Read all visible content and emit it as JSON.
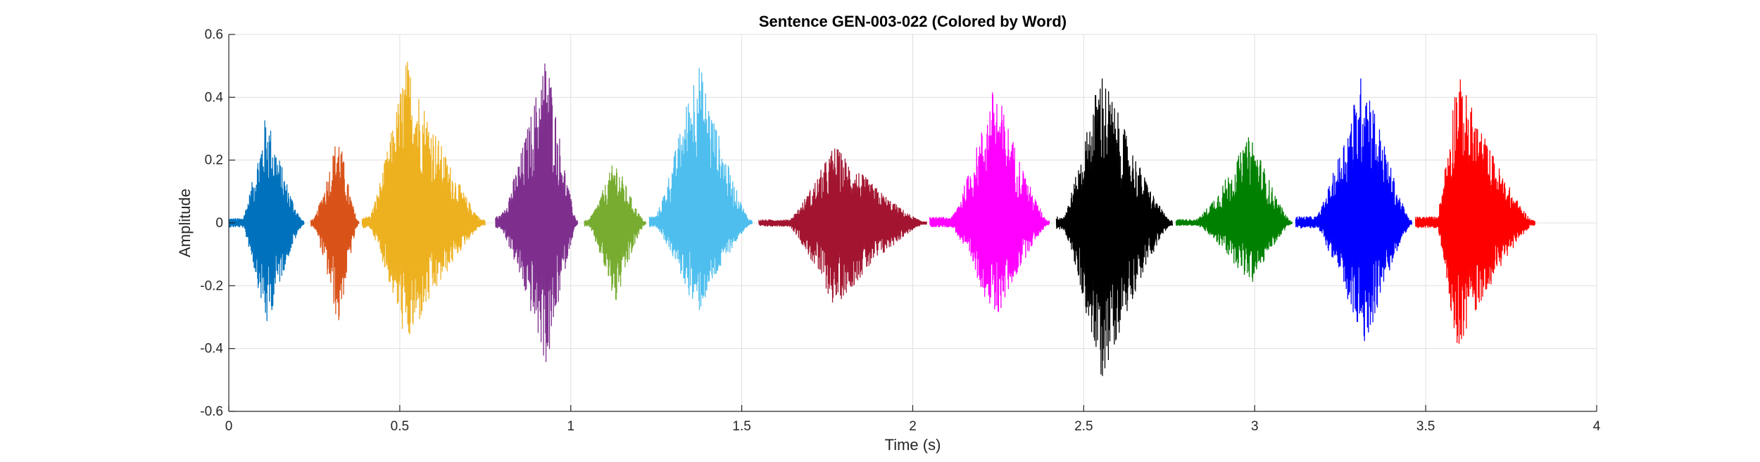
{
  "chart_data": {
    "type": "line",
    "title": "Sentence GEN-003-022 (Colored by Word)",
    "xlabel": "Time (s)",
    "ylabel": "Amplitude",
    "xlim": [
      0,
      4
    ],
    "ylim": [
      -0.6,
      0.6
    ],
    "x_ticks": [
      0,
      0.5,
      1,
      1.5,
      2,
      2.5,
      3,
      3.5,
      4
    ],
    "x_tick_labels": [
      "0",
      "0.5",
      "1",
      "1.5",
      "2",
      "2.5",
      "3",
      "3.5",
      "4"
    ],
    "y_ticks": [
      -0.6,
      -0.4,
      -0.2,
      0,
      0.2,
      0.4,
      0.6
    ],
    "y_tick_labels": [
      "-0.6",
      "-0.4",
      "-0.2",
      "0",
      "0.2",
      "0.4",
      "0.6"
    ],
    "grid": true,
    "legend": "none",
    "series": [
      {
        "color": "#0072BD",
        "x_start": 0.0,
        "x_end": 0.22,
        "pos_peak": 0.36,
        "neg_peak": -0.34,
        "peak_time": 0.11
      },
      {
        "color": "#D95319",
        "x_start": 0.24,
        "x_end": 0.38,
        "pos_peak": 0.3,
        "neg_peak": -0.34,
        "peak_time": 0.32
      },
      {
        "color": "#EDB120",
        "x_start": 0.39,
        "x_end": 0.75,
        "pos_peak": 0.53,
        "neg_peak": -0.4,
        "peak_time": 0.52
      },
      {
        "color": "#7E2F8E",
        "x_start": 0.78,
        "x_end": 1.02,
        "pos_peak": 0.56,
        "neg_peak": -0.47,
        "peak_time": 0.93
      },
      {
        "color": "#77AC30",
        "x_start": 1.04,
        "x_end": 1.22,
        "pos_peak": 0.21,
        "neg_peak": -0.27,
        "peak_time": 1.13
      },
      {
        "color": "#4DBEEE",
        "x_start": 1.23,
        "x_end": 1.53,
        "pos_peak": 0.54,
        "neg_peak": -0.3,
        "peak_time": 1.37
      },
      {
        "color": "#A2142F",
        "x_start": 1.55,
        "x_end": 2.04,
        "pos_peak": 0.25,
        "neg_peak": -0.27,
        "peak_time": 1.77
      },
      {
        "color": "#FF00FF",
        "x_start": 2.05,
        "x_end": 2.4,
        "pos_peak": 0.45,
        "neg_peak": -0.32,
        "peak_time": 2.24
      },
      {
        "color": "#000000",
        "x_start": 2.42,
        "x_end": 2.76,
        "pos_peak": 0.5,
        "neg_peak": -0.51,
        "peak_time": 2.55
      },
      {
        "color": "#008000",
        "x_start": 2.77,
        "x_end": 3.11,
        "pos_peak": 0.29,
        "neg_peak": -0.2,
        "peak_time": 2.99
      },
      {
        "color": "#0000FF",
        "x_start": 3.12,
        "x_end": 3.46,
        "pos_peak": 0.51,
        "neg_peak": -0.41,
        "peak_time": 3.32
      },
      {
        "color": "#FF0000",
        "x_start": 3.47,
        "x_end": 3.82,
        "pos_peak": 0.49,
        "neg_peak": -0.41,
        "peak_time": 3.59
      }
    ]
  }
}
